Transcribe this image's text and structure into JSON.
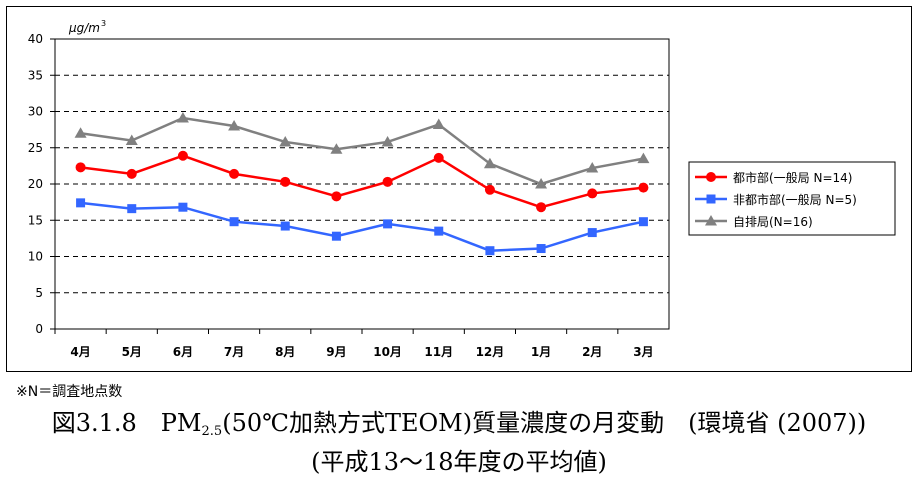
{
  "chart_data": {
    "type": "line",
    "categories": [
      "4月",
      "5月",
      "6月",
      "7月",
      "8月",
      "9月",
      "10月",
      "11月",
      "12月",
      "1月",
      "2月",
      "3月"
    ],
    "series": [
      {
        "name": "都市部(一般局 N=14)",
        "color": "#ff0000",
        "marker": "circle",
        "values": [
          22.3,
          21.4,
          23.9,
          21.4,
          20.3,
          18.3,
          20.3,
          23.6,
          19.2,
          16.8,
          18.7,
          19.5
        ]
      },
      {
        "name": "非都市部(一般局 N=5)",
        "color": "#3366ff",
        "marker": "square",
        "values": [
          17.4,
          16.6,
          16.8,
          14.8,
          14.2,
          12.8,
          14.5,
          13.5,
          10.8,
          11.1,
          13.3,
          14.8
        ]
      },
      {
        "name": "自排局(N=16)",
        "color": "#808080",
        "marker": "triangle",
        "values": [
          27.0,
          26.0,
          29.1,
          28.0,
          25.8,
          24.8,
          25.8,
          28.2,
          22.8,
          20.0,
          22.2,
          23.5
        ]
      }
    ],
    "yticks": [
      "0",
      "5",
      "10",
      "15",
      "20",
      "25",
      "30",
      "35",
      "40"
    ],
    "ylim": [
      0,
      40
    ],
    "unit_label": "μg/m",
    "unit_sup": "3",
    "grid": "dashed",
    "legend_position": "right"
  },
  "footnote": "※N＝調査地点数",
  "caption": {
    "line1_pre": "図3.1.8　PM",
    "line1_sub": "2.5",
    "line1_post": "(50℃加熱方式TEOM)質量濃度の月変動　(環境省 (2007))",
    "line2": "(平成13～18年度の平均値)"
  }
}
